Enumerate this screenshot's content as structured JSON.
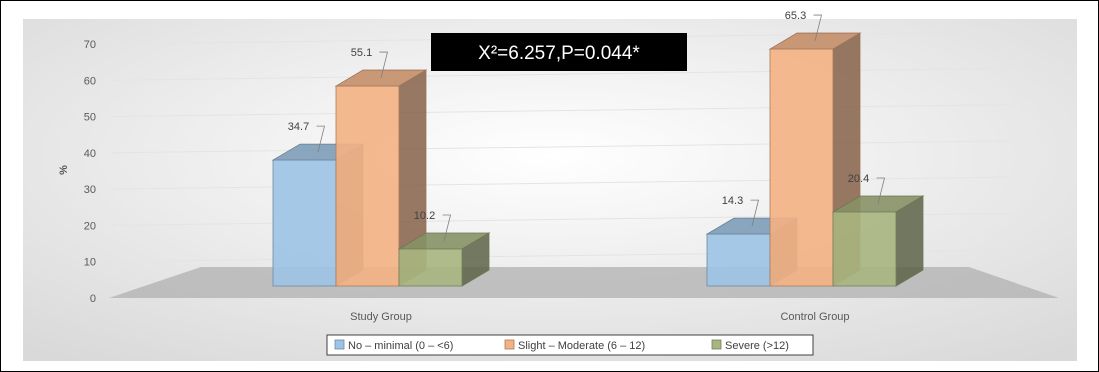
{
  "chart_data": {
    "type": "bar",
    "style": "3d-clustered-column",
    "categories": [
      "Study Group",
      "Control Group"
    ],
    "series": [
      {
        "name": "No – minimal (0 – <6)",
        "values": [
          34.7,
          14.3
        ],
        "color": "#9dc3e6"
      },
      {
        "name": "Slight – Moderate (6 – 12)",
        "values": [
          55.1,
          65.3
        ],
        "color": "#f4b183"
      },
      {
        "name": "Severe (>12)",
        "values": [
          10.2,
          20.4
        ],
        "color": "#a9b57f"
      }
    ],
    "data_labels": [
      [
        "34.7",
        "14.3"
      ],
      [
        "55.1",
        "65.3"
      ],
      [
        "10.2",
        "20.4"
      ]
    ],
    "ylabel": "%",
    "ylim": [
      0,
      70
    ],
    "yticks": [
      "0",
      "10",
      "20",
      "30",
      "40",
      "50",
      "60",
      "70"
    ],
    "grid": true,
    "legend_position": "bottom",
    "annotation": "X²=6.257,P=0.044*"
  }
}
